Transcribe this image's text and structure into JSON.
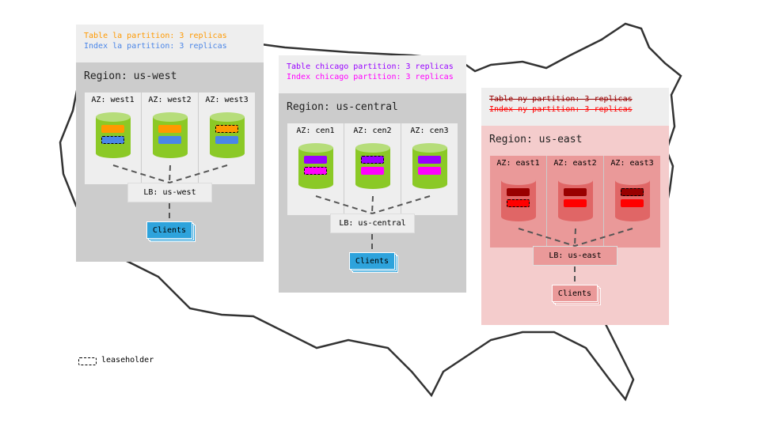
{
  "regions": [
    {
      "id": "us-west",
      "title": "Region: us-west",
      "table_line": "Table la partition: 3 replicas",
      "index_line": "Index la partition: 3 replicas",
      "table_color": "#ff9900",
      "index_color": "#4a86e8",
      "struck": false,
      "azs": [
        {
          "label": "AZ: west1",
          "leaseholder": "index"
        },
        {
          "label": "AZ: west2",
          "leaseholder": "none"
        },
        {
          "label": "AZ: west3",
          "leaseholder": "table"
        }
      ],
      "lb": "LB: us-west",
      "clients": "Clients",
      "body_color": "#cccccc",
      "az_color": "#eeeeee",
      "cyl_color": "#8bc926",
      "cyl_top": "#b6dd7a",
      "lb_color": "#eeeeee",
      "clients_color": "#2ea3dc"
    },
    {
      "id": "us-central",
      "title": "Region: us-central",
      "table_line": "Table chicago partition: 3 replicas",
      "index_line": "Index chicago partition: 3 replicas",
      "table_color": "#9900ff",
      "index_color": "#ff00ff",
      "struck": false,
      "azs": [
        {
          "label": "AZ: cen1",
          "leaseholder": "index"
        },
        {
          "label": "AZ: cen2",
          "leaseholder": "table"
        },
        {
          "label": "AZ: cen3",
          "leaseholder": "none"
        }
      ],
      "lb": "LB: us-central",
      "clients": "Clients",
      "body_color": "#cccccc",
      "az_color": "#eeeeee",
      "cyl_color": "#8bc926",
      "cyl_top": "#b6dd7a",
      "lb_color": "#eeeeee",
      "clients_color": "#2ea3dc"
    },
    {
      "id": "us-east",
      "title": "Region: us-east",
      "table_line": "Table ny partition: 3 replicas",
      "index_line": "Index ny partition: 3 replicas",
      "table_color": "#990000",
      "index_color": "#ff0000",
      "struck": true,
      "azs": [
        {
          "label": "AZ: east1",
          "leaseholder": "index"
        },
        {
          "label": "AZ: east2",
          "leaseholder": "none"
        },
        {
          "label": "AZ: east3",
          "leaseholder": "table"
        }
      ],
      "lb": "LB: us-east",
      "clients": "Clients",
      "body_color": "#f4cccc",
      "az_color": "#ea9999",
      "cyl_color": "#e06666",
      "cyl_top": "#ea9999",
      "lb_color": "#ea9999",
      "clients_color": "#ea9999"
    }
  ],
  "legend": {
    "label": "leaseholder"
  }
}
